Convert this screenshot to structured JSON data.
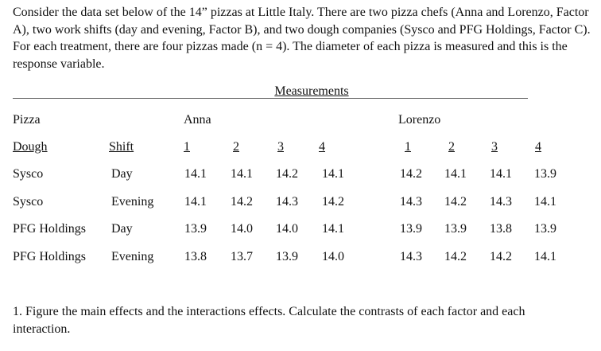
{
  "intro": "Consider the data set below of the 14” pizzas at Little Italy. There are two pizza chefs (Anna and Lorenzo, Factor A), two work shifts (day and evening, Factor B), and two dough companies (Sysco and PFG Holdings, Factor C). For each treatment, there are four pizzas made (n = 4). The diameter of each pizza is measured and this is the response variable.",
  "table": {
    "title": "Measurements",
    "pizza_label": "Pizza",
    "chef_a": "Anna",
    "chef_b": "Lorenzo",
    "dough_header": "Dough",
    "shift_header": "Shift",
    "rep_labels": [
      "1",
      "2",
      "3",
      "4"
    ],
    "rows": [
      {
        "dough": "Sysco",
        "shift": "Day",
        "anna": [
          "14.1",
          "14.1",
          "14.2",
          "14.1"
        ],
        "lorenzo": [
          "14.2",
          "14.1",
          "14.1",
          "13.9"
        ]
      },
      {
        "dough": "Sysco",
        "shift": "Evening",
        "anna": [
          "14.1",
          "14.2",
          "14.3",
          "14.2"
        ],
        "lorenzo": [
          "14.3",
          "14.2",
          "14.3",
          "14.1"
        ]
      },
      {
        "dough": "PFG Holdings",
        "shift": "Day",
        "anna": [
          "13.9",
          "14.0",
          "14.0",
          "14.1"
        ],
        "lorenzo": [
          "13.9",
          "13.9",
          "13.8",
          "13.9"
        ]
      },
      {
        "dough": "PFG Holdings",
        "shift": "Evening",
        "anna": [
          "13.8",
          "13.7",
          "13.9",
          "14.0"
        ],
        "lorenzo": [
          "14.3",
          "14.2",
          "14.2",
          "14.1"
        ]
      }
    ]
  },
  "question": "1. Figure the main effects and the interactions effects. Calculate the contrasts of each factor and each interaction."
}
